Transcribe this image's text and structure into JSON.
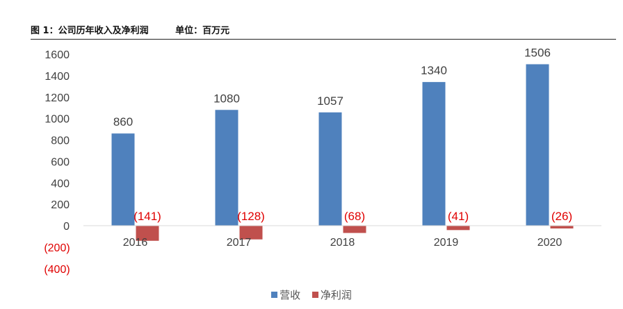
{
  "header": {
    "title": "图 1：公司历年收入及净利润",
    "unit": "单位：百万元"
  },
  "colors": {
    "revenue": "#4f81bd",
    "net_profit": "#c0504d",
    "negative_text": "#e00000"
  },
  "chart_data": {
    "type": "bar",
    "categories": [
      "2016",
      "2017",
      "2018",
      "2019",
      "2020"
    ],
    "series": [
      {
        "name": "营收",
        "values": [
          860,
          1080,
          1057,
          1340,
          1506
        ],
        "labels": [
          "860",
          "1080",
          "1057",
          "1340",
          "1506"
        ]
      },
      {
        "name": "净利润",
        "values": [
          -141,
          -128,
          -68,
          -41,
          -26
        ],
        "labels": [
          "(141)",
          "(128)",
          "(68)",
          "(41)",
          "(26)"
        ]
      }
    ],
    "y_ticks": [
      {
        "value": 1600,
        "label": "1600"
      },
      {
        "value": 1400,
        "label": "1400"
      },
      {
        "value": 1200,
        "label": "1200"
      },
      {
        "value": 1000,
        "label": "1000"
      },
      {
        "value": 800,
        "label": "800"
      },
      {
        "value": 600,
        "label": "600"
      },
      {
        "value": 400,
        "label": "400"
      },
      {
        "value": 200,
        "label": "200"
      },
      {
        "value": 0,
        "label": "0"
      },
      {
        "value": -200,
        "label": "(200)"
      },
      {
        "value": -400,
        "label": "(400)"
      }
    ],
    "ylim": [
      -400,
      1600
    ],
    "grid": false,
    "legend_position": "bottom"
  }
}
